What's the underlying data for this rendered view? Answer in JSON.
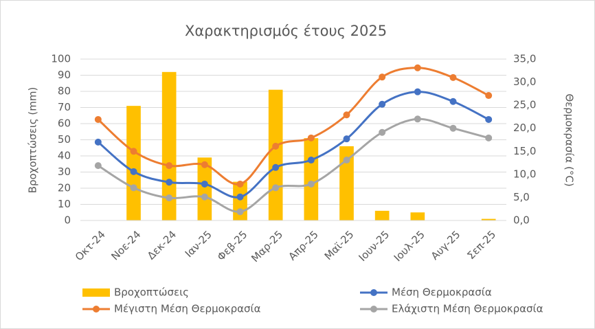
{
  "chart_data": {
    "type": "bar-line",
    "title": "Χαρακτηρισμός έτους 2025",
    "y_label": "Βροχοπτώσεις (mm)",
    "y2_label": "Θερμοκρασία (°C)",
    "categories": [
      "Οκτ-24",
      "Νοε-24",
      "Δεκ-24",
      "Ιαν-25",
      "Φεβ-25",
      "Μαρ-25",
      "Απρ-25",
      "Μαϊ-25",
      "Ιουν-25",
      "Ιουλ-25",
      "Αυγ-25",
      "Σεπ-25"
    ],
    "series": [
      {
        "name": "Βροχοπτώσεις",
        "type": "bar",
        "color": "#FFC000",
        "values": [
          0,
          71,
          92,
          39,
          24,
          81,
          51,
          46,
          6,
          5,
          0,
          1
        ]
      },
      {
        "name": "Μέση Θερμοκρασία",
        "type": "line",
        "axis": "y2",
        "color": "#4472C4",
        "values": [
          17.0,
          10.6,
          8.3,
          7.9,
          5.1,
          11.5,
          13.1,
          17.7,
          25.2,
          27.9,
          25.8,
          21.9
        ]
      },
      {
        "name": "Μέγιστη Μέση Θερμοκρασία",
        "type": "line",
        "axis": "y2",
        "color": "#ED7D31",
        "values": [
          21.9,
          15.0,
          11.9,
          12.1,
          7.9,
          16.1,
          17.9,
          22.9,
          31.1,
          33.1,
          31.0,
          27.1
        ]
      },
      {
        "name": "Ελάχιστη Μέση Θερμοκρασία",
        "type": "line",
        "axis": "y2",
        "color": "#A5A5A5",
        "values": [
          11.9,
          7.1,
          4.9,
          5.1,
          1.9,
          7.1,
          7.9,
          13.1,
          19.1,
          22.0,
          20.0,
          17.9
        ]
      }
    ],
    "ylim": [
      0,
      100
    ],
    "yticks": [
      0,
      10,
      20,
      30,
      40,
      50,
      60,
      70,
      80,
      90,
      100
    ],
    "y2lim": [
      0,
      35
    ],
    "y2ticks": [
      {
        "value": 0,
        "label": "0,0"
      },
      {
        "value": 5,
        "label": "5,0"
      },
      {
        "value": 10,
        "label": "10,0"
      },
      {
        "value": 15,
        "label": "15,0"
      },
      {
        "value": 20,
        "label": "20,0"
      },
      {
        "value": 25,
        "label": "25,0"
      },
      {
        "value": 30,
        "label": "30,0"
      },
      {
        "value": 35,
        "label": "35,0"
      }
    ],
    "grid": true,
    "legend": "bottom"
  }
}
